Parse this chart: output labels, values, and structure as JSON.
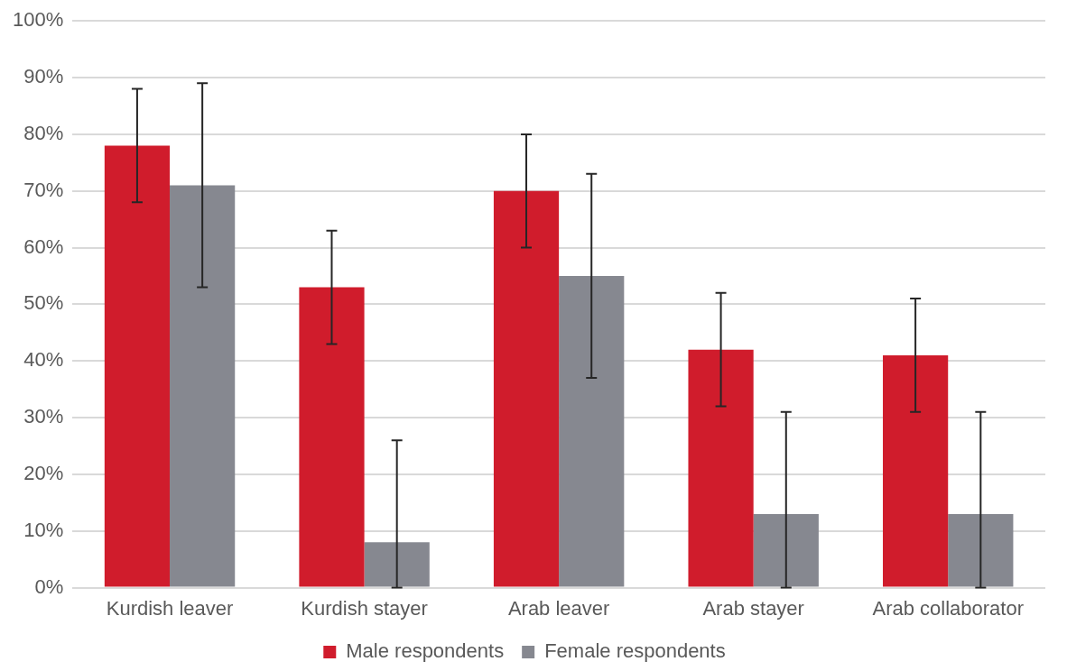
{
  "chart_data": {
    "type": "bar",
    "categories": [
      "Kurdish leaver",
      "Kurdish stayer",
      "Arab leaver",
      "Arab stayer",
      "Arab collaborator"
    ],
    "series": [
      {
        "name": "Male respondents",
        "color": "#d01c2c",
        "values": [
          78,
          53,
          70,
          42,
          41
        ],
        "errors": [
          10,
          10,
          10,
          10,
          10
        ]
      },
      {
        "name": "Female respondents",
        "color": "#868890",
        "values": [
          71,
          8,
          55,
          13,
          13
        ],
        "errors": [
          [
            53,
            89
          ],
          [
            0,
            26
          ],
          [
            37,
            73
          ],
          [
            0,
            31
          ],
          [
            0,
            31
          ]
        ]
      }
    ],
    "ylim": [
      0,
      100
    ],
    "yticks": [
      {
        "value": 0,
        "label": "0%"
      },
      {
        "value": 10,
        "label": "10%"
      },
      {
        "value": 20,
        "label": "20%"
      },
      {
        "value": 30,
        "label": "30%"
      },
      {
        "value": 40,
        "label": "40%"
      },
      {
        "value": 50,
        "label": "50%"
      },
      {
        "value": 60,
        "label": "60%"
      },
      {
        "value": 70,
        "label": "70%"
      },
      {
        "value": 80,
        "label": "80%"
      },
      {
        "value": 90,
        "label": "90%"
      },
      {
        "value": 100,
        "label": "100%"
      }
    ],
    "grid": "y",
    "legend": "bottom"
  }
}
